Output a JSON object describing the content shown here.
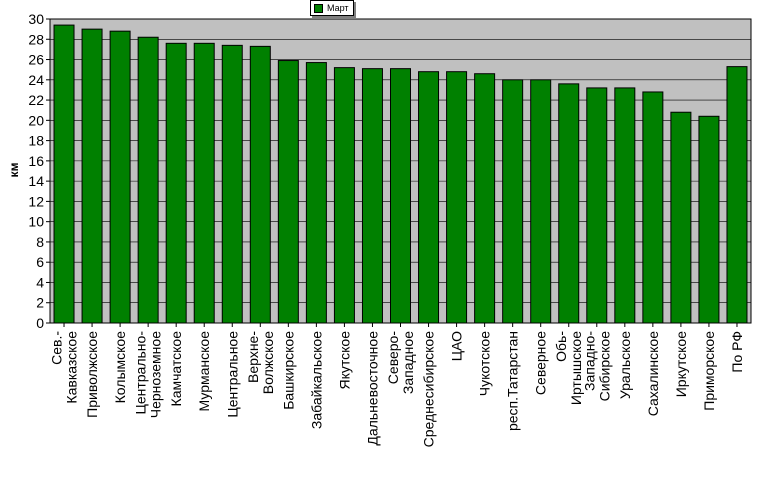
{
  "chart_data": {
    "type": "bar",
    "title": "",
    "xlabel": "",
    "ylabel": "км",
    "ylim": [
      0,
      30
    ],
    "ytick_step": 2,
    "grid": true,
    "legend_position": "top-center",
    "plot_background": "#c0c0c0",
    "bar_color": "#008000",
    "categories": [
      "Сев.-Кавказское",
      "Приволжское",
      "Колымское",
      "Центрально-Черноземное",
      "Камчатское",
      "Мурманское",
      "Центральное",
      "Верхне-Волжское",
      "Башкирское",
      "Забайкальское",
      "Якутское",
      "Дальневосточное",
      "Северо-Западное",
      "Среднесибирское",
      "ЦАО",
      "Чукотское",
      "респ.Татарстан",
      "Северное",
      "Обь-Иртышское",
      "Западно-Сибирское",
      "Уральское",
      "Сахалинское",
      "Иркутское",
      "Приморское",
      "По РФ"
    ],
    "category_lines": [
      [
        "Сев.-",
        "Кавказское"
      ],
      [
        "Приволжское"
      ],
      [
        "Колымское"
      ],
      [
        "Центрально-",
        "Черноземное"
      ],
      [
        "Камчатское"
      ],
      [
        "Мурманское"
      ],
      [
        "Центральное"
      ],
      [
        "Верхне-",
        "Волжское"
      ],
      [
        "Башкирское"
      ],
      [
        "Забайкальское"
      ],
      [
        "Якутское"
      ],
      [
        "Дальневосточное"
      ],
      [
        "Северо-",
        "Западное"
      ],
      [
        "Среднесибирское"
      ],
      [
        "ЦАО"
      ],
      [
        "Чукотское"
      ],
      [
        "респ.Татарстан"
      ],
      [
        "Северное"
      ],
      [
        "Обь-",
        "Иртышское"
      ],
      [
        "Западно-",
        "Сибирское"
      ],
      [
        "Уральское"
      ],
      [
        "Сахалинское"
      ],
      [
        "Иркутское"
      ],
      [
        "Приморское"
      ],
      [
        "По РФ"
      ]
    ],
    "series": [
      {
        "name": "Март",
        "values": [
          29.4,
          29.0,
          28.8,
          28.2,
          27.6,
          27.6,
          27.4,
          27.3,
          25.9,
          25.7,
          25.2,
          25.1,
          25.1,
          24.8,
          24.8,
          24.6,
          24.0,
          24.0,
          23.6,
          23.2,
          23.2,
          22.8,
          20.8,
          20.4,
          25.3
        ]
      }
    ]
  }
}
